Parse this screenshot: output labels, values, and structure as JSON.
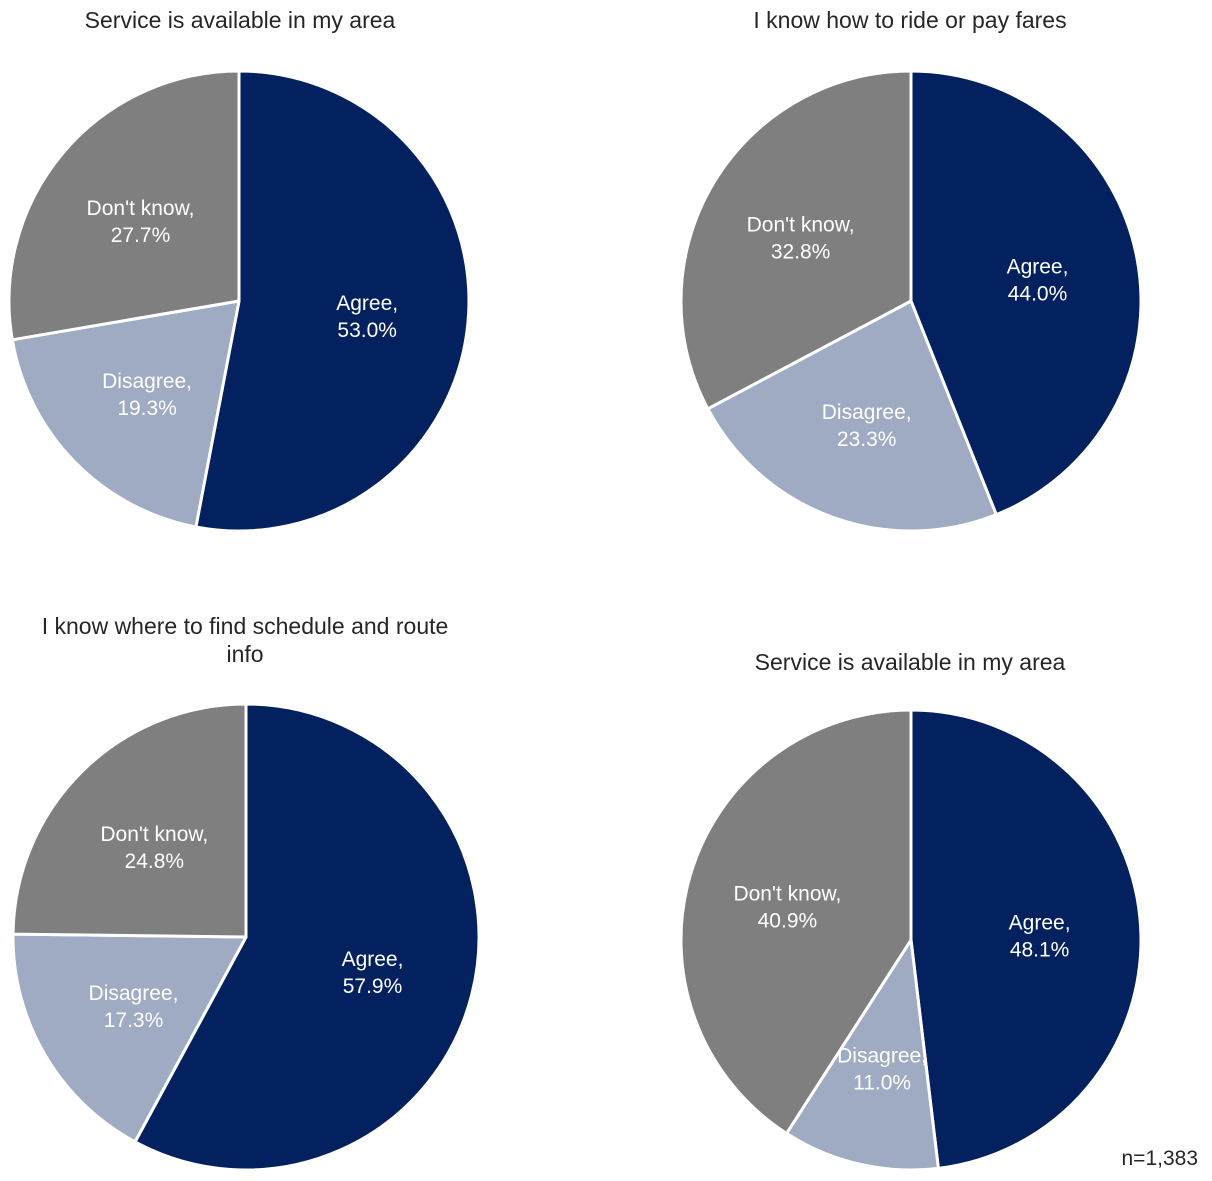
{
  "colors": {
    "agree": "#04215F",
    "disagree": "#9FAAC3",
    "dont_know": "#7F7F7F",
    "label": "#FFFFFF",
    "separator": "#FFFFFF"
  },
  "footnote": "n=1,383",
  "chart_data": [
    {
      "type": "pie",
      "title": "Service is available in my area",
      "slices": [
        {
          "label": "Agree",
          "value": 53.0,
          "text": "53.0%"
        },
        {
          "label": "Disagree",
          "value": 19.3,
          "text": "19.3%"
        },
        {
          "label": "Don't know",
          "value": 27.7,
          "text": "27.7%"
        }
      ]
    },
    {
      "type": "pie",
      "title": "I know how to ride or pay fares",
      "slices": [
        {
          "label": "Agree",
          "value": 44.0,
          "text": "44.0%"
        },
        {
          "label": "Disagree",
          "value": 23.3,
          "text": "23.3%"
        },
        {
          "label": "Don't know",
          "value": 32.8,
          "text": "32.8%"
        }
      ]
    },
    {
      "type": "pie",
      "title": "I know where to find schedule and route info",
      "slices": [
        {
          "label": "Agree",
          "value": 57.9,
          "text": "57.9%"
        },
        {
          "label": "Disagree",
          "value": 17.3,
          "text": "17.3%"
        },
        {
          "label": "Don't know",
          "value": 24.8,
          "text": "24.8%"
        }
      ]
    },
    {
      "type": "pie",
      "title": "Service is available in my area",
      "slices": [
        {
          "label": "Agree",
          "value": 48.1,
          "text": "48.1%"
        },
        {
          "label": "Disagree",
          "value": 11.0,
          "text": "11.0%"
        },
        {
          "label": "Don't know",
          "value": 40.9,
          "text": "40.9%"
        }
      ]
    }
  ]
}
